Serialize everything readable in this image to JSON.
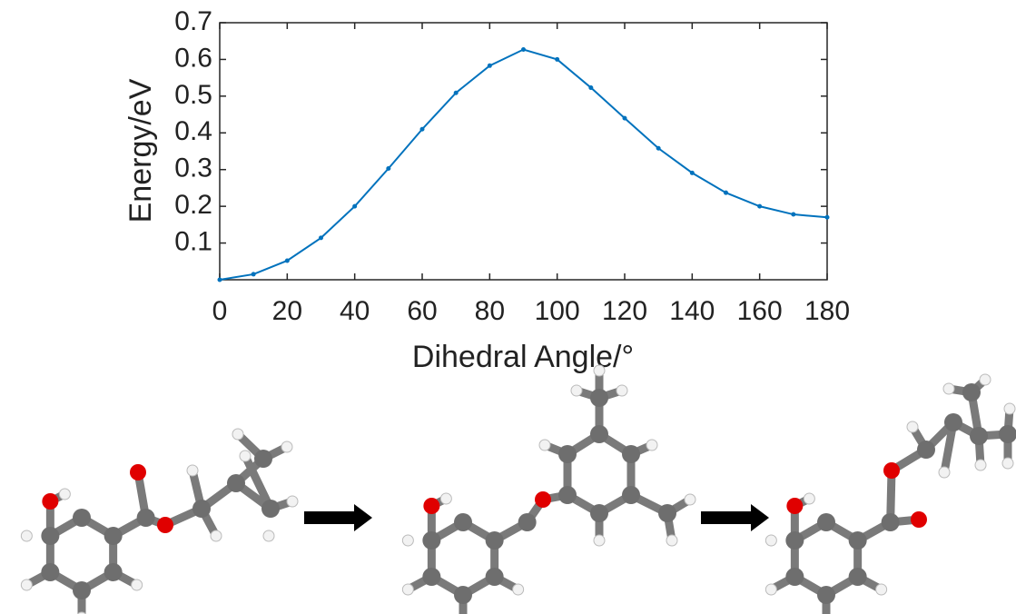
{
  "chart_data": {
    "type": "line",
    "x_label": "Dihedral Angle/°",
    "y_label": "Energy/eV",
    "x": [
      0,
      10,
      20,
      30,
      40,
      50,
      60,
      70,
      80,
      90,
      100,
      110,
      120,
      130,
      140,
      150,
      160,
      170,
      180
    ],
    "series": [
      {
        "color": "#0072bd",
        "values": [
          0.0,
          0.015,
          0.052,
          0.114,
          0.2,
          0.303,
          0.41,
          0.509,
          0.583,
          0.627,
          0.6,
          0.523,
          0.44,
          0.358,
          0.291,
          0.237,
          0.2,
          0.178,
          0.17
        ]
      }
    ],
    "xlim": [
      0,
      180
    ],
    "ylim": [
      0,
      0.7
    ],
    "xticks": [
      0,
      20,
      40,
      60,
      80,
      100,
      120,
      140,
      160,
      180
    ],
    "yticks": [
      0.1,
      0.2,
      0.3,
      0.4,
      0.5,
      0.6,
      0.7
    ],
    "grid": false
  }
}
